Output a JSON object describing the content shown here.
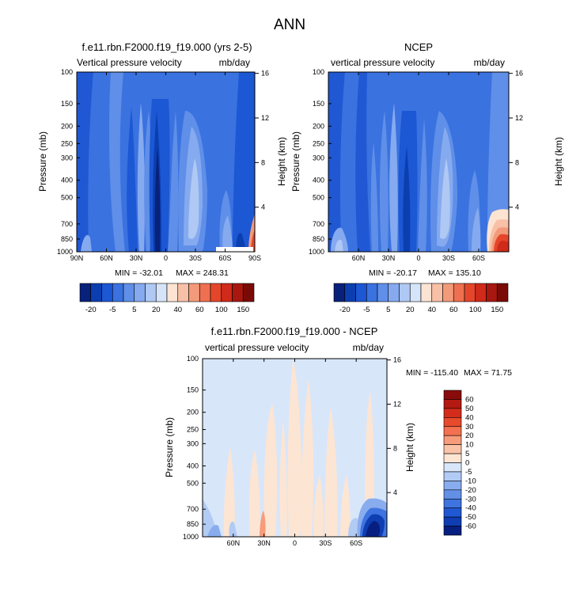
{
  "main_title": "ANN",
  "chart_data": [
    {
      "type": "heatmap",
      "id": "model",
      "title": "f.e11.rbn.F2000.f19_f19.000 (yrs 2-5)",
      "subtitle_left": "Vertical pressure velocity",
      "subtitle_right": "mb/day",
      "ylabel": "Pressure (mb)",
      "ylabel_right": "Height (km)",
      "xticks": [
        "90N",
        "60N",
        "30N",
        "0",
        "30S",
        "60S",
        "90S"
      ],
      "xtick_lats": [
        90,
        60,
        30,
        0,
        -30,
        -60,
        -90
      ],
      "xlim": [
        90,
        -90
      ],
      "yticks": [
        "100",
        "150",
        "200",
        "250",
        "300",
        "400",
        "500",
        "700",
        "850",
        "1000"
      ],
      "ytick_values": [
        100,
        150,
        200,
        250,
        300,
        400,
        500,
        700,
        850,
        1000
      ],
      "ylim": [
        100,
        1000
      ],
      "y_scale": "log",
      "height_ticks": [
        "4",
        "8",
        "12",
        "16"
      ],
      "height_tick_km": [
        4,
        8,
        12,
        16
      ],
      "min_text": "MIN = -32.01",
      "max_text": "MAX = 248.31",
      "min": -32.01,
      "max": 248.31,
      "colorbar_labels": [
        "-20",
        "-5",
        "5",
        "20",
        "40",
        "60",
        "100",
        "150"
      ]
    },
    {
      "type": "heatmap",
      "id": "obs",
      "title": "NCEP",
      "subtitle_left": "vertical pressure velocity",
      "subtitle_right": "mb/day",
      "ylabel": "Pressure (mb)",
      "ylabel_right": "Height (km)",
      "xticks": [
        "60N",
        "30N",
        "0",
        "30S",
        "60S"
      ],
      "xtick_lats": [
        60,
        30,
        0,
        -30,
        -60
      ],
      "xlim": [
        90,
        -90
      ],
      "yticks": [
        "100",
        "150",
        "200",
        "250",
        "300",
        "400",
        "500",
        "700",
        "850",
        "1000"
      ],
      "ytick_values": [
        100,
        150,
        200,
        250,
        300,
        400,
        500,
        700,
        850,
        1000
      ],
      "ylim": [
        100,
        1000
      ],
      "y_scale": "log",
      "height_ticks": [
        "4",
        "8",
        "12",
        "16"
      ],
      "height_tick_km": [
        4,
        8,
        12,
        16
      ],
      "min_text": "MIN = -20.17",
      "max_text": "MAX = 135.10",
      "min": -20.17,
      "max": 135.1,
      "colorbar_labels": [
        "-20",
        "-5",
        "5",
        "20",
        "40",
        "60",
        "100",
        "150"
      ]
    },
    {
      "type": "heatmap",
      "id": "diff",
      "title": "f.e11.rbn.F2000.f19_f19.000 - NCEP",
      "subtitle_left": "vertical pressure velocity",
      "subtitle_right": "mb/day",
      "ylabel": "Pressure (mb)",
      "ylabel_right": "Height (km)",
      "xticks": [
        "60N",
        "30N",
        "0",
        "30S",
        "60S"
      ],
      "xtick_lats": [
        60,
        30,
        0,
        -30,
        -60
      ],
      "xlim": [
        90,
        -90
      ],
      "yticks": [
        "100",
        "150",
        "200",
        "250",
        "300",
        "400",
        "500",
        "700",
        "850",
        "1000"
      ],
      "ytick_values": [
        100,
        150,
        200,
        250,
        300,
        400,
        500,
        700,
        850,
        1000
      ],
      "ylim": [
        100,
        1000
      ],
      "y_scale": "log",
      "height_ticks": [
        "4",
        "8",
        "12",
        "16"
      ],
      "height_tick_km": [
        4,
        8,
        12,
        16
      ],
      "min_text": "MIN = -115.40",
      "max_text": "MAX =  71.75",
      "min": -115.4,
      "max": 71.75,
      "colorbar_labels": [
        "60",
        "50",
        "40",
        "30",
        "20",
        "10",
        "5",
        "0",
        "-5",
        "-10",
        "-20",
        "-30",
        "-40",
        "-50",
        "-60"
      ]
    }
  ],
  "colors": {
    "abs_colorbar": [
      "#08217a",
      "#0b3fb0",
      "#1c57d4",
      "#3a72e0",
      "#5f8fe8",
      "#86aaef",
      "#afc8f4",
      "#d6e4fa",
      "#fde3d2",
      "#f8c0a6",
      "#f39a7a",
      "#ee7050",
      "#e5462b",
      "#cf2a1a",
      "#a81710",
      "#7a0a05"
    ],
    "diff_colorbar": [
      "#8a0b0b",
      "#b41a12",
      "#d42c1a",
      "#e84a2c",
      "#f37150",
      "#f79c7b",
      "#fac3a7",
      "#fde5d3",
      "#d8e6fa",
      "#b2cbf4",
      "#89acee",
      "#6390e7",
      "#3e73e0",
      "#2058d4",
      "#0f3eb3",
      "#071f80"
    ],
    "diff_background": "#d8e6fa"
  }
}
